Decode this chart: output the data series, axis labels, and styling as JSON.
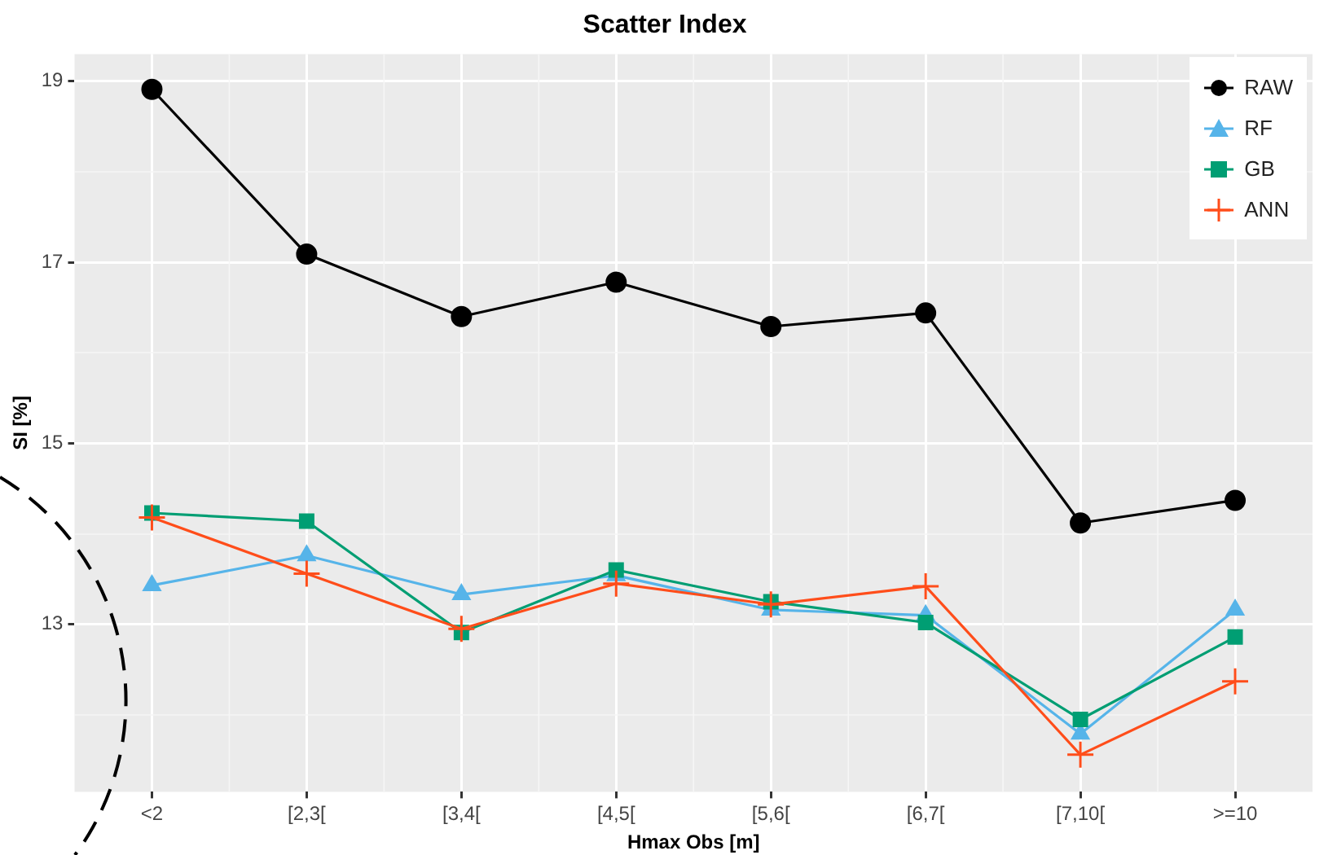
{
  "chart_data": {
    "type": "line",
    "title": "Scatter Index",
    "xlabel": "Hmax Obs [m]",
    "ylabel": "SI [%]",
    "categories": [
      "<2",
      "[2,3[",
      "[3,4[",
      "[4,5[",
      "[5,6[",
      "[6,7[",
      "[7,10[",
      ">=10"
    ],
    "ylim": [
      11.15,
      19.3
    ],
    "yticks": [
      {
        "value": 12,
        "label": null
      },
      13,
      {
        "value": 14,
        "label": null
      },
      15,
      {
        "value": 16,
        "label": null
      },
      17,
      {
        "value": 18,
        "label": null
      },
      19
    ],
    "grid": true,
    "legend": "top right",
    "series": [
      {
        "name": "RAW",
        "color": "#000000",
        "marker": "circle",
        "values": [
          18.91,
          17.09,
          16.4,
          16.78,
          16.29,
          16.44,
          14.12,
          14.37
        ]
      },
      {
        "name": "RF",
        "color": "#56b4e9",
        "marker": "triangle",
        "values": [
          13.43,
          13.76,
          13.33,
          13.54,
          13.16,
          13.1,
          11.79,
          13.16
        ]
      },
      {
        "name": "GB",
        "color": "#009e73",
        "marker": "square",
        "values": [
          14.23,
          14.14,
          12.91,
          13.6,
          13.25,
          13.02,
          11.95,
          12.86
        ]
      },
      {
        "name": "ANN",
        "color": "#ff4d1a",
        "marker": "cross",
        "values": [
          14.18,
          13.56,
          12.95,
          13.45,
          13.22,
          13.42,
          11.56,
          12.37
        ]
      }
    ]
  }
}
